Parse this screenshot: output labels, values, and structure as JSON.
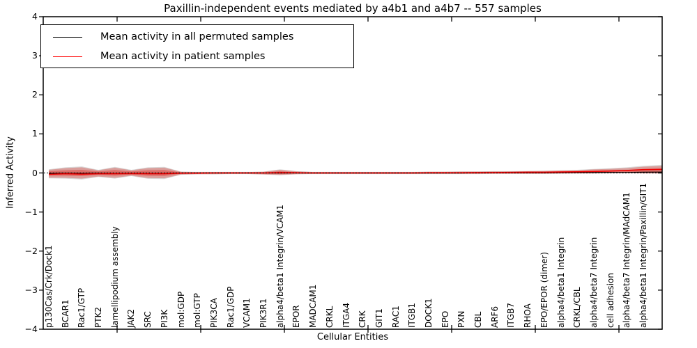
{
  "title": "Paxillin-independent events mediated by a4b1 and a4b7 -- 557 samples",
  "legend": {
    "items": [
      {
        "label": "Mean activity in all permuted samples",
        "color": "#000000"
      },
      {
        "label": "Mean activity in patient samples",
        "color": "#ff0000"
      }
    ]
  },
  "colors": {
    "patient_line": "#f00000",
    "permuted_line": "#000000",
    "band_fill": "#de2d26",
    "permuted_band_fill": "#808080",
    "zero_line": "#000000",
    "frame": "#000000"
  },
  "chart_data": {
    "type": "line",
    "title": "Paxillin-independent events mediated by a4b1 and a4b7 -- 557 samples",
    "xlabel": "Cellular Entities",
    "ylabel": "Inferred Activity",
    "ylim": [
      -4,
      4
    ],
    "yticks": [
      4,
      3,
      2,
      1,
      0,
      -1,
      -2,
      -3,
      -4
    ],
    "grid": false,
    "zero_line": "dotted",
    "legend_position": "upper left",
    "categories": [
      "p130Cas/Crk/Dock1",
      "BCAR1",
      "Rac1/GTP",
      "PTK2",
      "lamellipodium assembly",
      "JAK2",
      "SRC",
      "PI3K",
      "mol:GDP",
      "mol:GTP",
      "PIK3CA",
      "Rac1/GDP",
      "VCAM1",
      "PIK3R1",
      "alpha4/beta1 Integrin/VCAM1",
      "EPOR",
      "MADCAM1",
      "CRKL",
      "ITGA4",
      "CRK",
      "GIT1",
      "RAC1",
      "ITGB1",
      "DOCK1",
      "EPO",
      "PXN",
      "CBL",
      "ARF6",
      "ITGB7",
      "RHOA",
      "EPO/EPOR (dimer)",
      "alpha4/beta1 Integrin",
      "CRKL/CBL",
      "alpha4/beta7 Integrin",
      "cell adhesion",
      "alpha4/beta7 Integrin/MAdCAM1",
      "alpha4/beta1 Integrin/Paxillin/GIT1"
    ],
    "series": [
      {
        "name": "Mean activity in all permuted samples",
        "color": "#000000",
        "values": [
          -0.01,
          -0.005,
          -0.01,
          -0.005,
          -0.01,
          -0.005,
          -0.01,
          -0.01,
          0,
          0,
          0,
          0,
          0,
          0,
          0,
          0,
          0,
          0,
          0,
          0,
          0,
          0,
          0,
          0,
          0,
          0,
          0.005,
          0.005,
          0.005,
          0.005,
          0.005,
          0.01,
          0.01,
          0.01,
          0.015,
          0.015,
          0.02
        ]
      },
      {
        "name": "Mean activity in patient samples",
        "color": "#f00000",
        "values": [
          -0.035,
          -0.02,
          -0.03,
          -0.02,
          -0.02,
          -0.015,
          -0.02,
          -0.02,
          -0.005,
          -0.005,
          0,
          0,
          0,
          0,
          0.01,
          0.005,
          0,
          0,
          0,
          0,
          0,
          0,
          0,
          0.005,
          0.005,
          0.005,
          0.01,
          0.01,
          0.015,
          0.02,
          0.02,
          0.025,
          0.03,
          0.04,
          0.05,
          0.065,
          0.085
        ]
      }
    ],
    "band": {
      "name": "patient activity spread",
      "upper": [
        0.08,
        0.125,
        0.145,
        0.07,
        0.135,
        0.07,
        0.125,
        0.135,
        0.03,
        0.025,
        0.025,
        0.025,
        0.025,
        0.03,
        0.08,
        0.04,
        0.025,
        0.025,
        0.025,
        0.025,
        0.025,
        0.025,
        0.025,
        0.03,
        0.03,
        0.035,
        0.035,
        0.04,
        0.04,
        0.045,
        0.05,
        0.06,
        0.07,
        0.09,
        0.105,
        0.125,
        0.16
      ],
      "lower": [
        -0.12,
        -0.125,
        -0.145,
        -0.09,
        -0.125,
        -0.07,
        -0.13,
        -0.135,
        -0.04,
        -0.03,
        -0.03,
        -0.025,
        -0.025,
        -0.035,
        -0.05,
        -0.03,
        -0.025,
        -0.025,
        -0.025,
        -0.025,
        -0.025,
        -0.025,
        -0.025,
        -0.025,
        -0.025,
        -0.025,
        -0.025,
        -0.02,
        -0.02,
        -0.02,
        -0.02,
        -0.015,
        -0.01,
        -0.01,
        -0.005,
        0.0,
        -0.01
      ]
    }
  }
}
